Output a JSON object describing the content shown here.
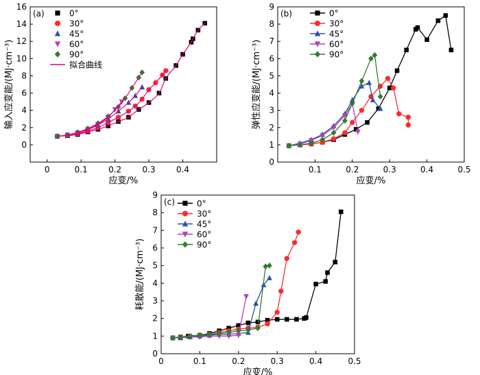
{
  "chart_data": [
    {
      "panel_label": "(a)",
      "type": "scatter",
      "xlabel": "应变/%",
      "ylabel": "输入应变能/(MJ·cm⁻³)",
      "xlim": [
        -0.05,
        0.5
      ],
      "ylim": [
        -2,
        16
      ],
      "xticks": [
        "0",
        "0.1",
        "0.2",
        "0.3",
        "0.4"
      ],
      "xtick_values": [
        0,
        0.1,
        0.2,
        0.3,
        0.4
      ],
      "yticks": [
        "0",
        "2",
        "4",
        "6",
        "8",
        "10",
        "12",
        "14",
        "16"
      ],
      "ytick_values": [
        0,
        2,
        4,
        6,
        8,
        10,
        12,
        14,
        16
      ],
      "legend_position": "top-left",
      "fit_label": "拟合曲线",
      "fit_color": "#e4007f",
      "series": [
        {
          "name": "0°",
          "marker": "square",
          "color": "#000000",
          "x": [
            0.03,
            0.06,
            0.09,
            0.12,
            0.15,
            0.18,
            0.21,
            0.24,
            0.27,
            0.3,
            0.33,
            0.35,
            0.38,
            0.4,
            0.425,
            0.43,
            0.445,
            0.465
          ],
          "y": [
            1.0,
            1.05,
            1.2,
            1.5,
            1.8,
            2.2,
            2.7,
            3.2,
            4.1,
            4.9,
            6.0,
            7.7,
            9.2,
            10.5,
            11.9,
            12.3,
            13.3,
            14.1
          ]
        },
        {
          "name": "30°",
          "marker": "circle",
          "color": "#ff2a2a",
          "x": [
            0.03,
            0.06,
            0.09,
            0.12,
            0.15,
            0.18,
            0.21,
            0.24,
            0.26,
            0.28,
            0.3,
            0.32,
            0.34,
            0.35
          ],
          "y": [
            1.0,
            1.1,
            1.3,
            1.6,
            2.0,
            2.6,
            3.2,
            3.9,
            4.5,
            5.3,
            6.4,
            7.2,
            8.1,
            8.6
          ]
        },
        {
          "name": "45°",
          "marker": "triangle",
          "color": "#2f4fa8",
          "x": [
            0.03,
            0.06,
            0.09,
            0.12,
            0.15,
            0.18,
            0.21,
            0.24,
            0.26,
            0.28
          ],
          "y": [
            1.0,
            1.15,
            1.4,
            1.75,
            2.3,
            3.0,
            3.9,
            4.9,
            5.7,
            6.7
          ]
        },
        {
          "name": "60°",
          "marker": "triangle-down",
          "color": "#b23fb8",
          "x": [
            0.03,
            0.06,
            0.09,
            0.12,
            0.15,
            0.18,
            0.2,
            0.22
          ],
          "y": [
            1.0,
            1.15,
            1.4,
            1.8,
            2.4,
            3.2,
            4.1,
            5.0
          ]
        },
        {
          "name": "90°",
          "marker": "diamond",
          "color": "#2f7d32",
          "x": [
            0.03,
            0.06,
            0.09,
            0.12,
            0.15,
            0.18,
            0.21,
            0.23,
            0.25,
            0.27,
            0.28
          ],
          "y": [
            1.0,
            1.15,
            1.45,
            1.9,
            2.5,
            3.3,
            4.4,
            5.4,
            6.6,
            7.8,
            8.4
          ]
        }
      ]
    },
    {
      "panel_label": "(b)",
      "type": "line",
      "xlabel": "应变/%",
      "ylabel": "弹性应变能/(MJ·cm⁻³)",
      "xlim": [
        0,
        0.5
      ],
      "ylim": [
        0,
        9
      ],
      "xticks": [
        "0.1",
        "0.2",
        "0.3",
        "0.4",
        "0.5"
      ],
      "xtick_values": [
        0.1,
        0.2,
        0.3,
        0.4,
        0.5
      ],
      "yticks": [
        "0",
        "1",
        "2",
        "3",
        "4",
        "5",
        "6",
        "7",
        "8",
        "9"
      ],
      "ytick_values": [
        0,
        1,
        2,
        3,
        4,
        5,
        6,
        7,
        8,
        9
      ],
      "legend_position": "top-left",
      "series": [
        {
          "name": "0°",
          "marker": "square",
          "color": "#000000",
          "x": [
            0.03,
            0.06,
            0.09,
            0.12,
            0.15,
            0.18,
            0.21,
            0.24,
            0.27,
            0.3,
            0.32,
            0.345,
            0.37,
            0.375,
            0.4,
            0.43,
            0.45,
            0.465
          ],
          "y": [
            0.95,
            1.0,
            1.05,
            1.15,
            1.3,
            1.6,
            1.9,
            2.3,
            3.1,
            4.3,
            5.3,
            6.5,
            7.7,
            7.8,
            7.1,
            8.2,
            8.5,
            6.5
          ]
        },
        {
          "name": "30°",
          "marker": "circle",
          "color": "#ff2a2a",
          "x": [
            0.03,
            0.06,
            0.09,
            0.12,
            0.15,
            0.18,
            0.2,
            0.225,
            0.25,
            0.275,
            0.295,
            0.31,
            0.325,
            0.35,
            0.35
          ],
          "y": [
            0.95,
            1.0,
            1.05,
            1.15,
            1.35,
            1.7,
            2.3,
            3.0,
            3.8,
            4.4,
            4.85,
            4.3,
            2.8,
            2.6,
            2.15
          ]
        },
        {
          "name": "45°",
          "marker": "triangle",
          "color": "#2f4fa8",
          "x": [
            0.03,
            0.06,
            0.09,
            0.12,
            0.15,
            0.18,
            0.2,
            0.225,
            0.245,
            0.255,
            0.275
          ],
          "y": [
            0.95,
            1.1,
            1.3,
            1.6,
            2.1,
            2.8,
            3.6,
            4.4,
            4.6,
            3.6,
            3.1
          ]
        },
        {
          "name": "60°",
          "marker": "triangle-down",
          "color": "#b23fb8",
          "x": [
            0.03,
            0.06,
            0.09,
            0.12,
            0.15,
            0.18,
            0.2,
            0.215
          ],
          "y": [
            0.95,
            1.05,
            1.25,
            1.55,
            2.0,
            2.7,
            3.4,
            1.75
          ]
        },
        {
          "name": "90°",
          "marker": "diamond",
          "color": "#2f7d32",
          "x": [
            0.03,
            0.06,
            0.09,
            0.12,
            0.15,
            0.18,
            0.2,
            0.225,
            0.25,
            0.26,
            0.275
          ],
          "y": [
            0.95,
            1.0,
            1.1,
            1.3,
            1.7,
            2.4,
            3.4,
            4.7,
            6.0,
            6.2,
            3.8
          ]
        }
      ]
    },
    {
      "panel_label": "(c)",
      "type": "line",
      "xlabel": "应变/%",
      "ylabel": "耗散能/(MJ·cm⁻³)",
      "xlim": [
        0,
        0.5
      ],
      "ylim": [
        0,
        9
      ],
      "xticks": [
        "0",
        "0.1",
        "0.2",
        "0.3",
        "0.4",
        "0.5"
      ],
      "xtick_values": [
        0,
        0.1,
        0.2,
        0.3,
        0.4,
        0.5
      ],
      "yticks": [
        "0",
        "1",
        "2",
        "3",
        "4",
        "5",
        "6",
        "7",
        "8",
        "9"
      ],
      "ytick_values": [
        0,
        1,
        2,
        3,
        4,
        5,
        6,
        7,
        8,
        9
      ],
      "legend_position": "top-right",
      "series": [
        {
          "name": "0°",
          "marker": "square",
          "color": "#000000",
          "x": [
            0.03,
            0.05,
            0.07,
            0.1,
            0.125,
            0.15,
            0.175,
            0.2,
            0.225,
            0.25,
            0.275,
            0.3,
            0.325,
            0.35,
            0.37,
            0.375,
            0.4,
            0.425,
            0.43,
            0.45,
            0.465
          ],
          "y": [
            0.9,
            0.95,
            1.0,
            1.05,
            1.15,
            1.3,
            1.45,
            1.6,
            1.75,
            1.8,
            1.9,
            1.95,
            1.95,
            1.95,
            2.0,
            2.05,
            3.95,
            4.1,
            4.6,
            5.2,
            8.05
          ]
        },
        {
          "name": "30°",
          "marker": "circle",
          "color": "#ff2a2a",
          "x": [
            0.03,
            0.05,
            0.075,
            0.1,
            0.125,
            0.15,
            0.175,
            0.2,
            0.225,
            0.25,
            0.275,
            0.3,
            0.31,
            0.325,
            0.345,
            0.355
          ],
          "y": [
            0.9,
            0.95,
            1.0,
            1.05,
            1.1,
            1.2,
            1.3,
            1.4,
            1.45,
            1.5,
            1.7,
            2.35,
            3.55,
            5.4,
            6.3,
            6.9
          ]
        },
        {
          "name": "45°",
          "marker": "triangle",
          "color": "#2f4fa8",
          "x": [
            0.03,
            0.05,
            0.075,
            0.1,
            0.125,
            0.15,
            0.175,
            0.2,
            0.225,
            0.245,
            0.265,
            0.28
          ],
          "y": [
            0.9,
            0.9,
            0.95,
            1.0,
            1.05,
            1.1,
            1.1,
            1.15,
            1.2,
            2.85,
            3.9,
            4.3
          ]
        },
        {
          "name": "60°",
          "marker": "triangle-down",
          "color": "#b23fb8",
          "x": [
            0.03,
            0.05,
            0.075,
            0.1,
            0.125,
            0.15,
            0.175,
            0.2,
            0.22
          ],
          "y": [
            0.9,
            0.9,
            0.95,
            0.95,
            1.0,
            1.0,
            1.0,
            1.05,
            3.25
          ]
        },
        {
          "name": "90°",
          "marker": "diamond",
          "color": "#2f7d32",
          "x": [
            0.03,
            0.05,
            0.075,
            0.1,
            0.125,
            0.15,
            0.175,
            0.2,
            0.225,
            0.25,
            0.27,
            0.28
          ],
          "y": [
            0.9,
            0.95,
            1.0,
            1.05,
            1.1,
            1.15,
            1.2,
            1.3,
            1.35,
            1.45,
            4.95,
            5.0
          ]
        }
      ]
    }
  ]
}
